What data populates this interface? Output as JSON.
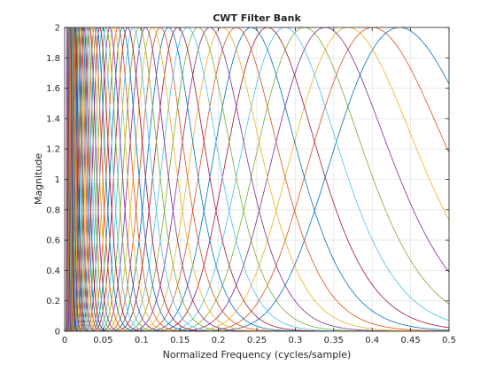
{
  "chart_data": {
    "type": "line",
    "title": "CWT Filter Bank",
    "xlabel": "Normalized Frequency  (cycles/sample)",
    "ylabel": "Magnitude",
    "xlim": [
      0,
      0.5
    ],
    "ylim": [
      0,
      2
    ],
    "xticks": [
      "0",
      "0.05",
      "0.1",
      "0.15",
      "0.2",
      "0.25",
      "0.3",
      "0.35",
      "0.4",
      "0.45",
      "0.5"
    ],
    "yticks": [
      "0",
      "0.2",
      "0.4",
      "0.6",
      "0.8",
      "1",
      "1.2",
      "1.4",
      "1.6",
      "1.8",
      "2"
    ],
    "grid": true,
    "legend": false,
    "peak_magnitude": 2,
    "series_colors": [
      "#0072BD",
      "#D95319",
      "#EDB120",
      "#7E2F8E",
      "#77AC30",
      "#4DBEEE",
      "#A2142F"
    ],
    "filter_center_frequencies": [
      0.4355,
      0.4006,
      0.3685,
      0.3389,
      0.3118,
      0.2868,
      0.2638,
      0.2427,
      0.2232,
      0.2053,
      0.1889,
      0.1737,
      0.1598,
      0.147,
      0.1352,
      0.1244,
      0.1144,
      0.1052,
      0.0968,
      0.0891,
      0.0819,
      0.0754,
      0.0693,
      0.0638,
      0.0587,
      0.054,
      0.0496,
      0.0457,
      0.042,
      0.0386,
      0.0355,
      0.0327,
      0.0301,
      0.0277,
      0.0254,
      0.0234,
      0.0215,
      0.0198,
      0.0182,
      0.0168,
      0.0154,
      0.0142,
      0.013,
      0.012,
      0.011,
      0.0101,
      0.0093,
      0.0086,
      0.0079,
      0.0073,
      0.0067,
      0.0061,
      0.0056,
      0.0052,
      0.0048,
      0.0044,
      0.004,
      0.0037,
      0.0034,
      0.0031
    ]
  }
}
